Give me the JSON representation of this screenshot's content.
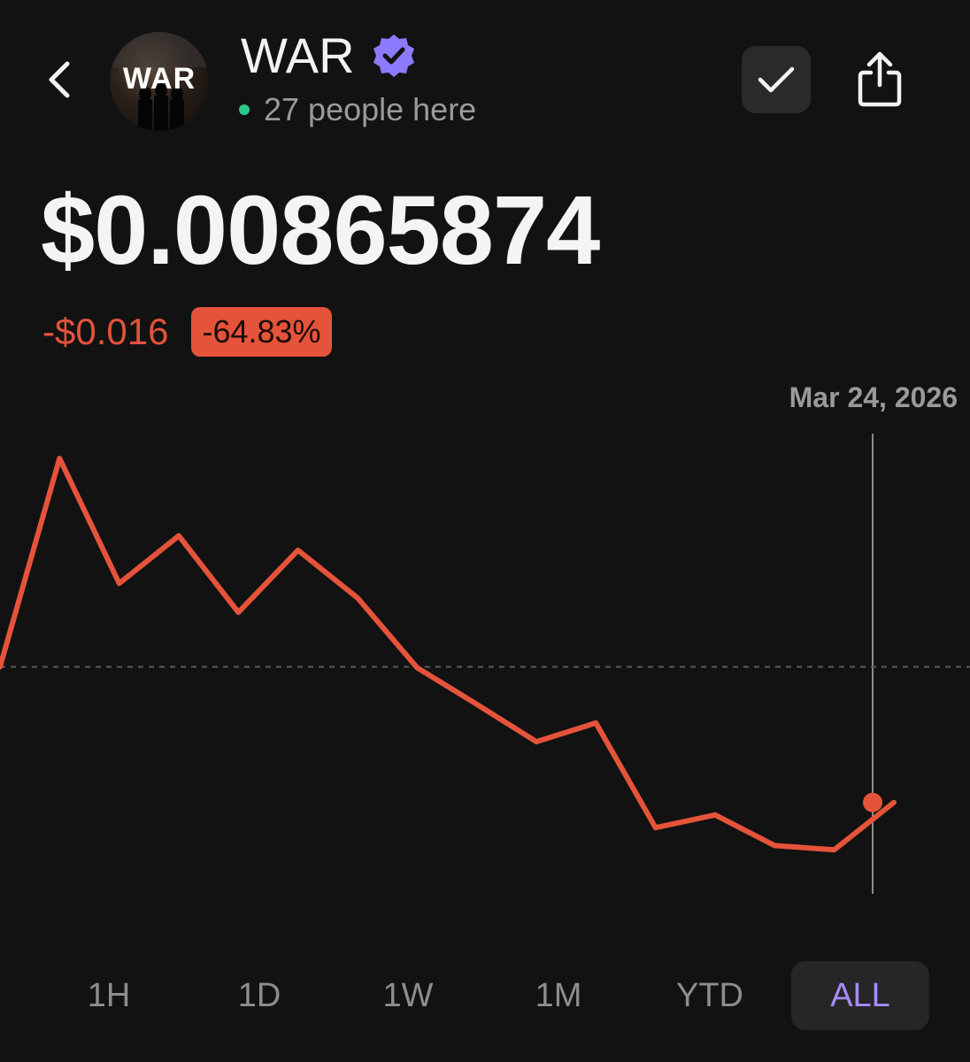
{
  "header": {
    "title": "WAR",
    "avatar_text": "WAR",
    "presence": "27 people here",
    "icons": {
      "back": "chevron-left-icon",
      "verified": "verified-badge-icon",
      "check": "checkmark-icon",
      "share": "share-icon"
    }
  },
  "price": {
    "value": "$0.00865874",
    "change_abs": "-$0.016",
    "change_pct": "-64.83%"
  },
  "colors": {
    "background": "#121212",
    "line": "#e5533a",
    "negative": "#e5533a",
    "presence": "#2bc98a",
    "accent": "#a68cff",
    "verified": "#8c7aff"
  },
  "chart_data": {
    "type": "line",
    "x": [
      0,
      1,
      2,
      3,
      4,
      5,
      6,
      7,
      8,
      9,
      10,
      11,
      12,
      13,
      14,
      15
    ],
    "values": [
      0.0246,
      0.0491,
      0.0344,
      0.04,
      0.031,
      0.0383,
      0.0327,
      0.0245,
      0.0202,
      0.0158,
      0.018,
      0.0057,
      0.0072,
      0.0036,
      0.0031,
      0.00865874
    ],
    "reference_line": 0.0246,
    "ylim": [
      0.0,
      0.052
    ],
    "tooltip_date": "Mar 24, 2026",
    "grid": false
  },
  "ranges": {
    "items": [
      "1H",
      "1D",
      "1W",
      "1M",
      "YTD",
      "ALL"
    ],
    "active": "ALL"
  }
}
